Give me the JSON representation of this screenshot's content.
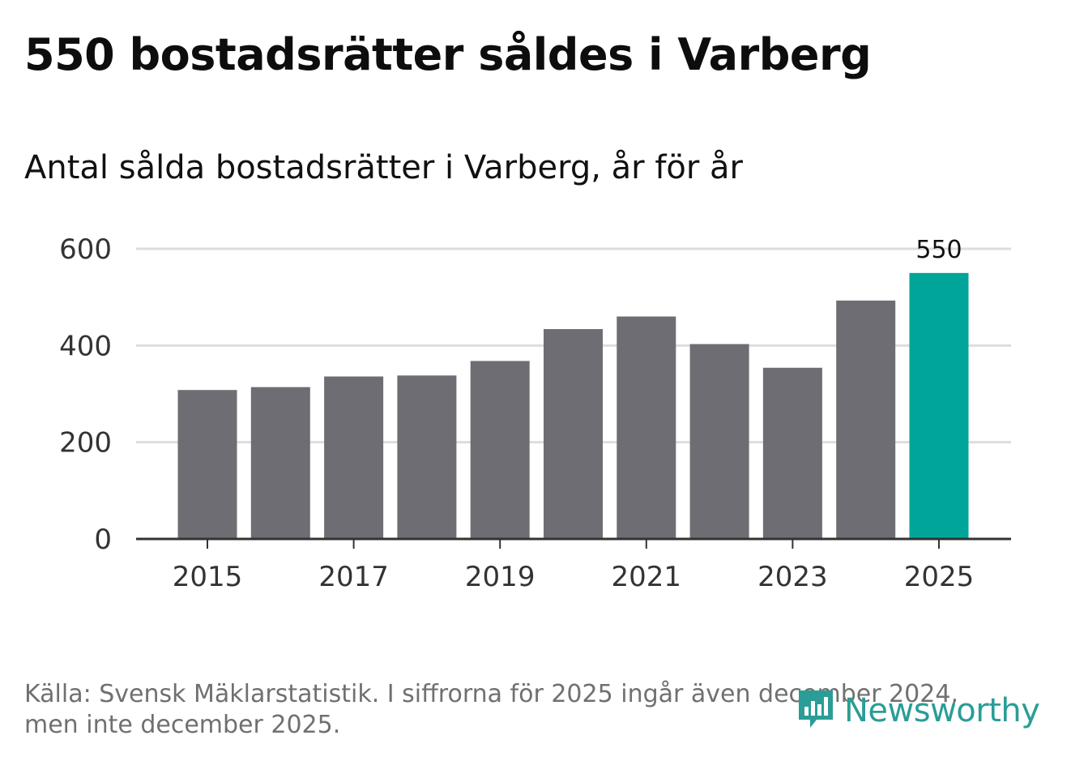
{
  "header": {
    "title": "550 bostadsrätter såldes i Varberg",
    "subtitle": "Antal sålda bostadsrätter i Varberg, år för år"
  },
  "chart_data": {
    "type": "bar",
    "title": "550 bostadsrätter såldes i Varberg",
    "subtitle": "Antal sålda bostadsrätter i Varberg, år för år",
    "xlabel": "",
    "ylabel": "",
    "categories": [
      "2015",
      "2016",
      "2017",
      "2018",
      "2019",
      "2020",
      "2021",
      "2022",
      "2023",
      "2024",
      "2025"
    ],
    "values": [
      308,
      314,
      336,
      338,
      368,
      434,
      460,
      403,
      354,
      493,
      550
    ],
    "x_tick_labels": [
      "2015",
      "2017",
      "2019",
      "2021",
      "2023",
      "2025"
    ],
    "y_ticks": [
      0,
      200,
      400,
      600
    ],
    "ylim": [
      0,
      600
    ],
    "grid": true,
    "highlight_index": 10,
    "highlight_label": "550",
    "colors": {
      "bar": "#6e6d73",
      "highlight": "#00a59a",
      "grid": "#dddddd",
      "axis": "#333333"
    }
  },
  "footer": {
    "source": "Källa: Svensk Mäklarstatistik. I siffrorna för 2025 ingår även december 2024, men inte december 2025.",
    "brand": "Newsworthy",
    "brand_icon": "newsworthy-logo-icon",
    "brand_color": "#2a9d96"
  }
}
